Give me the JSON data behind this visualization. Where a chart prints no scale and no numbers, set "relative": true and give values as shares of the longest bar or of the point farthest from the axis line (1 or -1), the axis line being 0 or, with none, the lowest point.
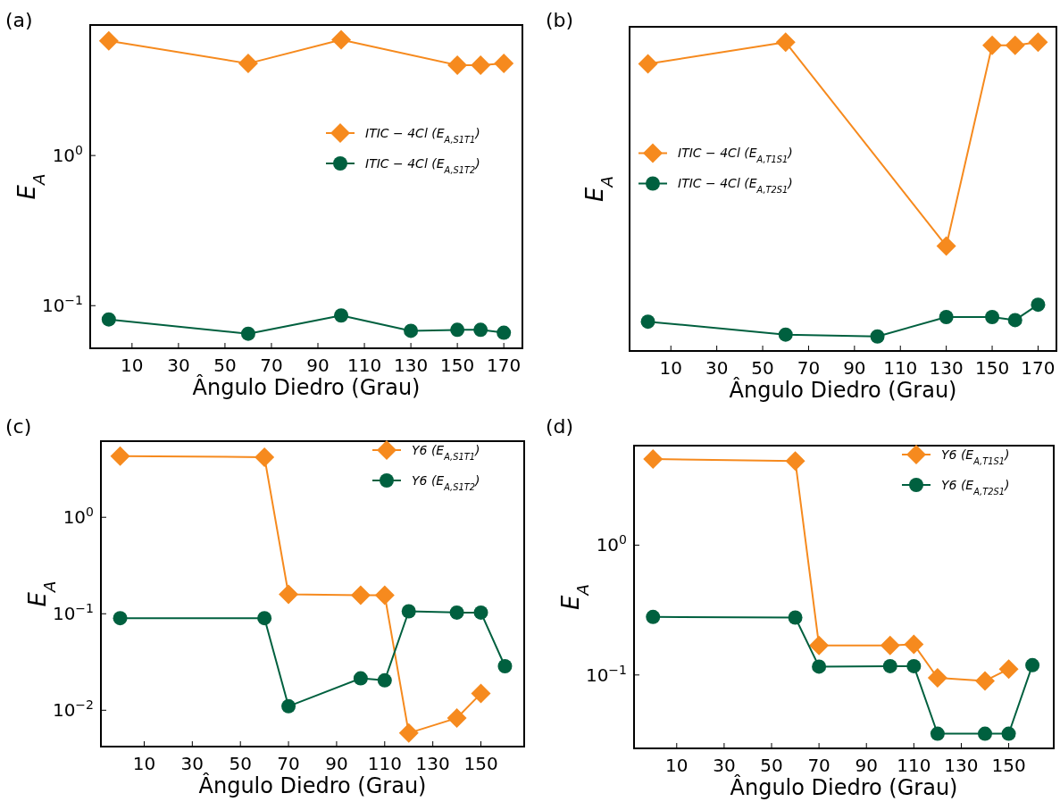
{
  "chart_data": [
    {
      "type": "line",
      "title": "(a)",
      "xlabel": "Ângulo Diedro (Grau)",
      "ylabel": "E$_{A}$",
      "log": true,
      "xlim": [
        -8,
        178
      ],
      "xticks": [
        10,
        30,
        50,
        70,
        90,
        110,
        130,
        150,
        170
      ],
      "ylim": [
        0.052,
        7.4
      ],
      "yticks": [
        {
          "value": 1,
          "label": "10$^{0}$"
        },
        {
          "value": 0.1,
          "label": "10$^{−1}$"
        }
      ],
      "legend": "right",
      "grid": false,
      "series": [
        {
          "name": "ITIC − 4Cl (E$_{A,S1T1}$)",
          "color": "#f68a1e",
          "marker": "diamond",
          "x": [
            0,
            60,
            100,
            150,
            160,
            170
          ],
          "values": [
            5.8,
            4.1,
            5.9,
            4.0,
            4.0,
            4.1
          ]
        },
        {
          "name": "ITIC − 4Cl (E$_{A,S1T2}$)",
          "color": "#00603f",
          "marker": "circle",
          "x": [
            0,
            60,
            100,
            130,
            150,
            160,
            170
          ],
          "values": [
            0.081,
            0.065,
            0.086,
            0.068,
            0.069,
            0.069,
            0.066
          ]
        }
      ]
    },
    {
      "type": "line",
      "title": "(b)",
      "xlabel": "Ângulo Diedro (Grau)",
      "ylabel": "E$_{A}$",
      "relative": true,
      "xlim": [
        -8,
        178
      ],
      "xticks": [
        10,
        30,
        50,
        70,
        90,
        110,
        130,
        150,
        170
      ],
      "legend": "left",
      "grid": false,
      "series": [
        {
          "name": "ITIC − 4Cl (E$_{A,T1S1}$)",
          "color": "#f68a1e",
          "marker": "diamond",
          "x": [
            0,
            60,
            130,
            150,
            160,
            170
          ],
          "values": [
            0.93,
            1,
            0.34,
            0.99,
            0.99,
            1
          ]
        },
        {
          "name": "ITIC − 4Cl (E$_{A,T2S1}$)",
          "color": "#00603f",
          "marker": "circle",
          "x": [
            0,
            60,
            100,
            130,
            150,
            160,
            170
          ],
          "values": [
            0.095,
            0.053,
            0.047,
            0.11,
            0.11,
            0.1,
            0.15
          ]
        }
      ]
    },
    {
      "type": "line",
      "title": "(c)",
      "xlabel": "Ângulo Diedro (Grau)",
      "ylabel": "E$_{A}$",
      "log": true,
      "xlim": [
        -8,
        168
      ],
      "xticks": [
        10,
        30,
        50,
        70,
        90,
        110,
        130,
        150
      ],
      "ylim": [
        0.0042,
        6.15
      ],
      "yticks": [
        {
          "value": 1,
          "label": "10$^{0}$"
        },
        {
          "value": 0.1,
          "label": "10$^{−1}$"
        },
        {
          "value": 0.01,
          "label": "10$^{−2}$"
        }
      ],
      "legend": "top right",
      "grid": false,
      "series": [
        {
          "name": "Y6 (E$_{A,S1T1}$)",
          "color": "#f68a1e",
          "marker": "diamond",
          "x": [
            0,
            60,
            70,
            100,
            110,
            120,
            140,
            150
          ],
          "values": [
            4.3,
            4.2,
            0.159,
            0.156,
            0.156,
            0.0058,
            0.0083,
            0.0149
          ]
        },
        {
          "name": "Y6 (E$_{A,S1T2}$)",
          "color": "#00603f",
          "marker": "circle",
          "x": [
            0,
            60,
            70,
            100,
            110,
            120,
            140,
            150,
            160
          ],
          "values": [
            0.09,
            0.09,
            0.011,
            0.0214,
            0.0204,
            0.106,
            0.103,
            0.103,
            0.0286
          ]
        }
      ]
    },
    {
      "type": "line",
      "title": "(d)",
      "xlabel": "Ângulo Diedro (Grau)",
      "ylabel": "E$_{A}$",
      "log": true,
      "xlim": [
        -8,
        169
      ],
      "xticks": [
        10,
        30,
        50,
        70,
        90,
        110,
        130,
        150
      ],
      "ylim": [
        0.0272,
        5.84
      ],
      "yticks": [
        {
          "value": 1,
          "label": "10$^{0}$"
        },
        {
          "value": 0.1,
          "label": "10$^{−1}$"
        }
      ],
      "legend": "top right",
      "grid": false,
      "series": [
        {
          "name": "Y6 (E$_{A,T1S1}$)",
          "color": "#f68a1e",
          "marker": "diamond",
          "x": [
            0,
            60,
            70,
            100,
            110,
            120,
            140,
            150
          ],
          "values": [
            4.6,
            4.45,
            0.169,
            0.169,
            0.172,
            0.095,
            0.09,
            0.111
          ]
        },
        {
          "name": "Y6 (E$_{A,T2S1}$)",
          "color": "#00603f",
          "marker": "circle",
          "x": [
            0,
            60,
            70,
            100,
            110,
            120,
            140,
            150,
            160
          ],
          "values": [
            0.28,
            0.277,
            0.116,
            0.117,
            0.117,
            0.0353,
            0.0353,
            0.0353,
            0.119
          ]
        }
      ]
    }
  ]
}
